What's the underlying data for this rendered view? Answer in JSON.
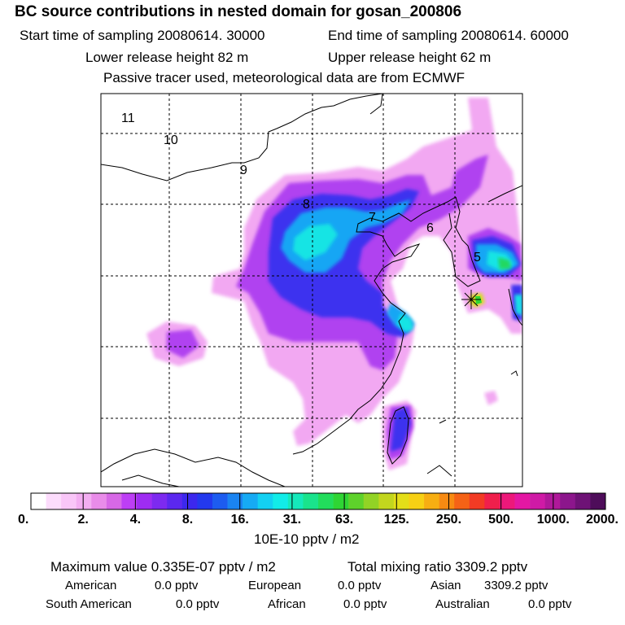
{
  "header": {
    "title": "BC  source contributions in nested domain for gosan_200806",
    "start_time": "Start time of sampling 20080614. 30000",
    "end_time": "End time of sampling 20080614. 60000",
    "lower_height": "Lower release height   82 m",
    "upper_height": "Upper release height   62 m",
    "note": "Passive tracer used, meteorological data are from ECMWF"
  },
  "map": {
    "grid_labels": [
      "11",
      "10",
      "9",
      "8",
      "7",
      "6",
      "5"
    ],
    "receptor_marker": "star-marker"
  },
  "colorbar": {
    "tick_labels": [
      "0.",
      "2.",
      "4.",
      "8.",
      "16.",
      "31.",
      "63.",
      "125.",
      "250.",
      "500.",
      "1000.",
      "2000."
    ],
    "units": "10E-10 pptv / m2",
    "colors": [
      "#ffffff",
      "#fcdcfc",
      "#f9c6f8",
      "#f3aef2",
      "#e98ce9",
      "#d768e6",
      "#bd3ef5",
      "#9e2cf2",
      "#7d2af0",
      "#5b28ef",
      "#3c28ee",
      "#2339ee",
      "#1d5cf0",
      "#1a84f2",
      "#16aaf4",
      "#13d0f2",
      "#12ece8",
      "#15e9bb",
      "#1ae38c",
      "#22dd5c",
      "#2fd534",
      "#5ed22b",
      "#92d325",
      "#c2d61e",
      "#e4de18",
      "#f7d014",
      "#f7ae12",
      "#f78a12",
      "#f56216",
      "#f23b24",
      "#f01f4c",
      "#ed187a",
      "#e417a3",
      "#cf1aa6",
      "#b0189a",
      "#8c168c",
      "#6e1276",
      "#4e0d5a"
    ]
  },
  "footer": {
    "max_value": "Maximum value  0.335E-07 pptv / m2",
    "total": "Total mixing ratio     3309.2 pptv",
    "regions": [
      {
        "name": "American",
        "value": "0.0 pptv"
      },
      {
        "name": "European",
        "value": "0.0 pptv"
      },
      {
        "name": "Asian",
        "value": "3309.2 pptv"
      },
      {
        "name": "South American",
        "value": "0.0 pptv"
      },
      {
        "name": "African",
        "value": "0.0 pptv"
      },
      {
        "name": "Australian",
        "value": "0.0 pptv"
      }
    ]
  }
}
